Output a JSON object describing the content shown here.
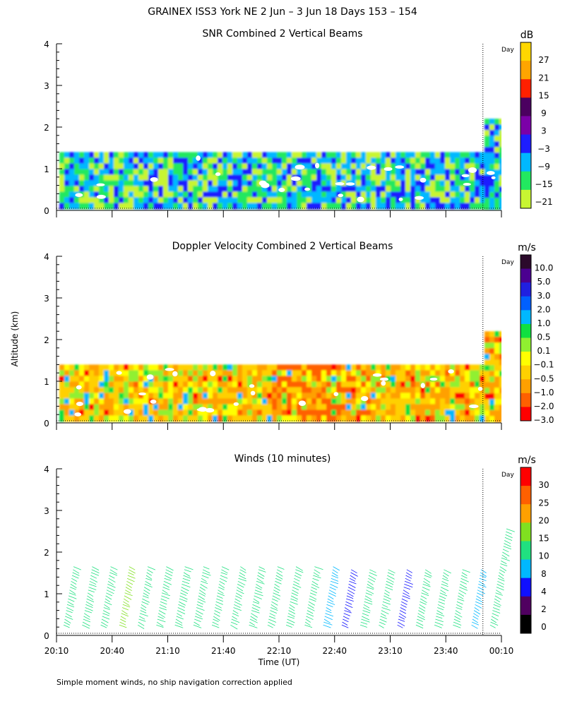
{
  "title": "GRAINEX ISS3 York NE   2 Jun –  3 Jun 18 Days 153 – 154",
  "ylabel": "Altitude (km)",
  "xlabel": "Time (UT)",
  "footnote": "Simple moment winds, no ship navigation correction applied",
  "day_marker_label": "Day",
  "x_ticks": [
    "20:10",
    "20:40",
    "21:10",
    "21:40",
    "22:10",
    "22:40",
    "23:10",
    "23:40",
    "00:10"
  ],
  "y_ticks": [
    "0",
    "1",
    "2",
    "3",
    "4"
  ],
  "chart_data": [
    {
      "type": "heatmap",
      "title": "SNR Combined 2 Vertical Beams",
      "colorbar_unit": "dB",
      "colorbar_ticks": [
        "27",
        "21",
        "15",
        "9",
        "3",
        "−3",
        "−9",
        "−15",
        "−21"
      ],
      "colorbar_colors": [
        "#ffd700",
        "#ffa500",
        "#ff2000",
        "#4b0060",
        "#7b00a8",
        "#1e1eff",
        "#00b8ff",
        "#22e860",
        "#c8f532"
      ],
      "xlim": [
        "20:10",
        "00:10"
      ],
      "ylim": [
        0,
        4
      ],
      "data_extent_km": [
        0.1,
        1.4
      ],
      "data_extent_final_km": [
        0.1,
        2.2
      ],
      "dominant_range_db": [
        -15,
        -3
      ],
      "day_boundary": "00:00"
    },
    {
      "type": "heatmap",
      "title": "Doppler Velocity Combined 2 Vertical Beams",
      "colorbar_unit": "m/s",
      "colorbar_ticks": [
        "10.0",
        "5.0",
        "3.0",
        "2.0",
        "1.0",
        "0.5",
        "0.1",
        "−0.1",
        "−0.5",
        "−1.0",
        "−2.0",
        "−3.0"
      ],
      "colorbar_colors": [
        "#2b0a2b",
        "#4b0090",
        "#2020e0",
        "#0060ff",
        "#00b8ff",
        "#10e040",
        "#90f030",
        "#ffff00",
        "#ffd000",
        "#ffa000",
        "#ff6000",
        "#ff0000"
      ],
      "xlim": [
        "20:10",
        "00:10"
      ],
      "ylim": [
        0,
        4
      ],
      "data_extent_km": [
        0.1,
        1.4
      ],
      "data_extent_final_km": [
        0.1,
        2.2
      ],
      "dominant_range_ms": [
        -1.0,
        0.1
      ],
      "day_boundary": "00:00"
    },
    {
      "type": "scatter",
      "title": "Winds (10 minutes)",
      "colorbar_unit": "m/s",
      "colorbar_ticks": [
        "30",
        "25",
        "20",
        "15",
        "10",
        "8",
        "4",
        "2",
        "0"
      ],
      "colorbar_colors": [
        "#ff0000",
        "#ff6000",
        "#ffa000",
        "#80e020",
        "#20e080",
        "#00b8ff",
        "#1010ff",
        "#500060",
        "#000000"
      ],
      "xlim": [
        "20:10",
        "00:10"
      ],
      "ylim": [
        0,
        4
      ],
      "profile_times": [
        "20:15",
        "20:25",
        "20:35",
        "20:45",
        "20:55",
        "21:05",
        "21:15",
        "21:25",
        "21:35",
        "21:45",
        "21:55",
        "22:05",
        "22:15",
        "22:25",
        "22:35",
        "22:45",
        "22:55",
        "23:05",
        "23:15",
        "23:25",
        "23:35",
        "23:45",
        "23:55",
        "00:05"
      ],
      "profile_top_km": [
        1.7,
        1.7,
        1.7,
        1.7,
        1.7,
        1.7,
        1.7,
        1.7,
        1.7,
        1.7,
        1.7,
        1.7,
        1.7,
        1.7,
        1.7,
        1.6,
        1.6,
        1.6,
        1.6,
        1.6,
        1.6,
        1.6,
        1.6,
        2.6
      ],
      "profile_speed_ms": [
        14,
        14,
        14,
        15,
        14,
        14,
        13,
        14,
        14,
        14,
        14,
        14,
        14,
        12,
        9,
        5,
        12,
        10,
        4,
        11,
        11,
        10,
        9,
        12
      ],
      "day_boundary": "00:00"
    }
  ]
}
